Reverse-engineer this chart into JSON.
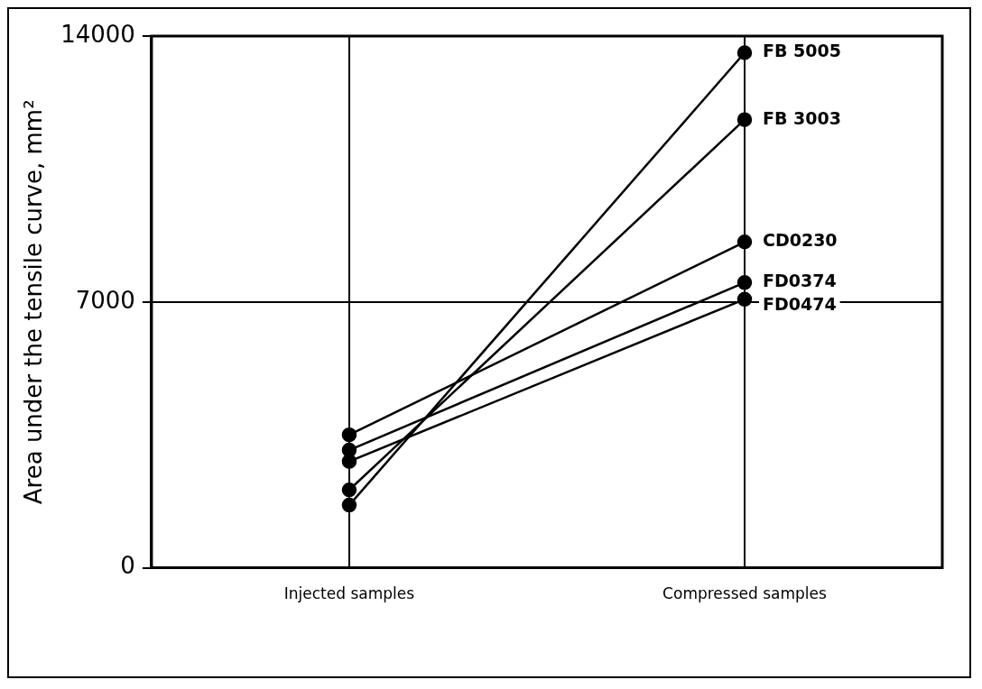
{
  "chart_data": {
    "type": "line",
    "ylabel": "Area under the tensile curve, mm²",
    "categories": [
      "Injected samples",
      "Compressed samples"
    ],
    "series": [
      {
        "name": "FB 5005",
        "color": "#000000",
        "values": [
          1650,
          13560
        ]
      },
      {
        "name": "FB 3003",
        "color": "#000000",
        "values": [
          2050,
          11800
        ]
      },
      {
        "name": "CD0230",
        "color": "#000000",
        "values": [
          3500,
          8580
        ]
      },
      {
        "name": "FD0374",
        "color": "#000000",
        "values": [
          3100,
          7510
        ]
      },
      {
        "name": "FD0474",
        "color": "#000000",
        "values": [
          2800,
          7070
        ]
      }
    ],
    "ylim": [
      0,
      14000
    ],
    "yticks": [
      0,
      7000,
      14000
    ],
    "grid": true,
    "legend": false,
    "marker": "circle",
    "line_style": "solid"
  }
}
